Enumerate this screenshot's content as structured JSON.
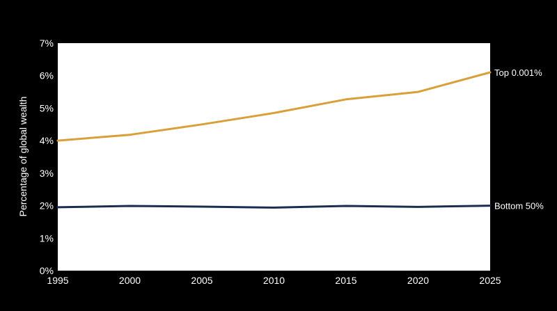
{
  "chart_data": {
    "type": "line",
    "title": "",
    "xlabel": "",
    "ylabel": "Percentage of global wealth",
    "x": [
      1995,
      2000,
      2005,
      2010,
      2015,
      2020,
      2025
    ],
    "xlim": [
      1995,
      2025
    ],
    "ylim": [
      0,
      7
    ],
    "x_ticks": [
      {
        "value": 1995,
        "label": "1995"
      },
      {
        "value": 2000,
        "label": "2000"
      },
      {
        "value": 2005,
        "label": "2005"
      },
      {
        "value": 2010,
        "label": "2010"
      },
      {
        "value": 2015,
        "label": "2015"
      },
      {
        "value": 2020,
        "label": "2020"
      },
      {
        "value": 2025,
        "label": "2025"
      }
    ],
    "y_ticks": [
      {
        "value": 0,
        "label": "0%"
      },
      {
        "value": 1,
        "label": "1%"
      },
      {
        "value": 2,
        "label": "2%"
      },
      {
        "value": 3,
        "label": "3%"
      },
      {
        "value": 4,
        "label": "4%"
      },
      {
        "value": 5,
        "label": "5%"
      },
      {
        "value": 6,
        "label": "6%"
      },
      {
        "value": 7,
        "label": "7%"
      }
    ],
    "grid": false,
    "legend": "direct labels at line ends (right)",
    "series": [
      {
        "name": "Top 0.001%",
        "color": "#D9A03A",
        "values": [
          4.0,
          4.18,
          4.5,
          4.85,
          5.27,
          5.5,
          6.1
        ]
      },
      {
        "name": "Bottom 50%",
        "color": "#1B2D4F",
        "values": [
          1.95,
          1.99,
          1.97,
          1.94,
          1.99,
          1.96,
          2.0
        ]
      }
    ],
    "colors": {
      "background": "#000000",
      "plot_background": "#FFFFFF",
      "text": "#FFFFFF"
    }
  }
}
